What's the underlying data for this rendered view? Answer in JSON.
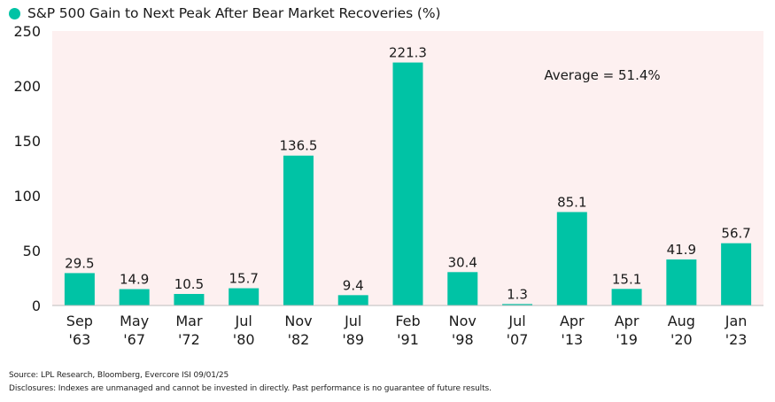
{
  "colors": {
    "bar": "#00c3a5",
    "plot_bg": "#fdf0f0",
    "text": "#1a1a1a"
  },
  "chart_data": {
    "type": "bar",
    "title": "S&P 500 Gain to Next Peak After Bear Market Recoveries (%)",
    "legend": "top-left",
    "categories": [
      [
        "Sep",
        "'63"
      ],
      [
        "May",
        "'67"
      ],
      [
        "Mar",
        "'72"
      ],
      [
        "Jul",
        "'80"
      ],
      [
        "Nov",
        "'82"
      ],
      [
        "Jul",
        "'89"
      ],
      [
        "Feb",
        "'91"
      ],
      [
        "Nov",
        "'98"
      ],
      [
        "Jul",
        "'07"
      ],
      [
        "Apr",
        "'13"
      ],
      [
        "Apr",
        "'19"
      ],
      [
        "Aug",
        "'20"
      ],
      [
        "Jan",
        "'23"
      ]
    ],
    "values": [
      29.5,
      14.9,
      10.5,
      15.7,
      136.5,
      9.4,
      221.3,
      30.4,
      1.3,
      85.1,
      15.1,
      41.9,
      56.7
    ],
    "data_labels": [
      "29.5",
      "14.9",
      "10.5",
      "15.7",
      "136.5",
      "9.4",
      "221.3",
      "30.4",
      "1.3",
      "85.1",
      "15.1",
      "41.9",
      "56.7"
    ],
    "ylim": [
      0,
      250
    ],
    "yticks": [
      0,
      50,
      100,
      150,
      200,
      250
    ],
    "annotation": "Average = 51.4%",
    "grid": false
  },
  "footer": {
    "source": "Source: LPL Research, Bloomberg, Evercore ISI 09/01/25",
    "disclosures": "Disclosures: Indexes are unmanaged and cannot be invested in directly. Past performance is no guarantee of future results."
  }
}
